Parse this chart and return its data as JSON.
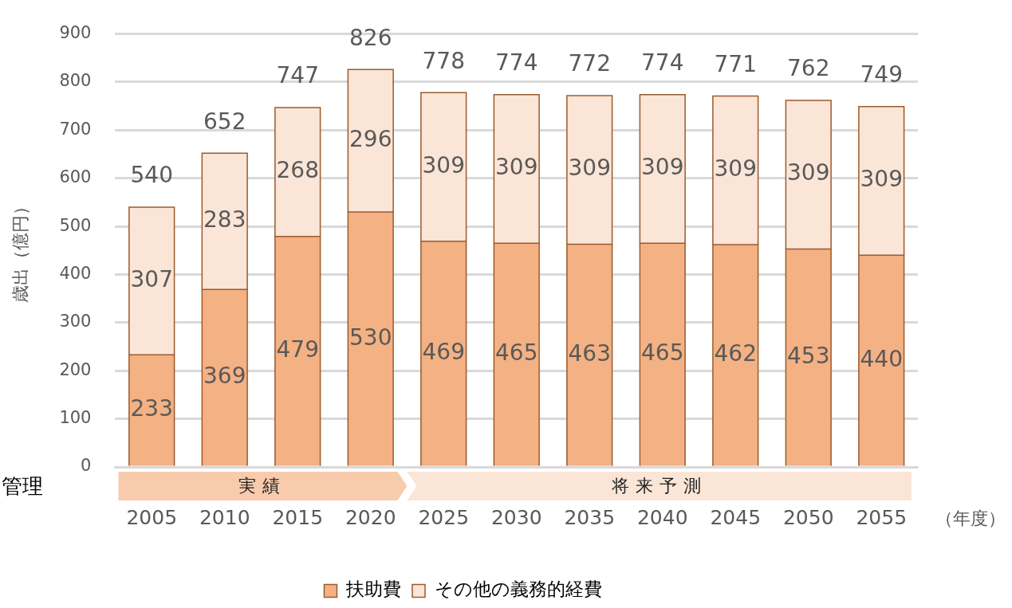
{
  "chart_data": {
    "type": "bar",
    "stacked": true,
    "ylabel": "歳出（億円）",
    "xlabel": "（年度）",
    "categories": [
      "2005",
      "2010",
      "2015",
      "2020",
      "2025",
      "2030",
      "2035",
      "2040",
      "2045",
      "2050",
      "2055"
    ],
    "series": [
      {
        "name": "扶助費",
        "color": "#f4b183",
        "values": [
          233,
          369,
          479,
          530,
          469,
          465,
          463,
          465,
          462,
          453,
          440
        ]
      },
      {
        "name": "その他の義務的経費",
        "color": "#fbe5d6",
        "values": [
          307,
          283,
          268,
          296,
          309,
          309,
          309,
          309,
          309,
          309,
          309
        ]
      }
    ],
    "totals": [
      "540",
      "652",
      "747",
      "826",
      "778",
      "774",
      "772",
      "774",
      "771",
      "762",
      "749"
    ],
    "data_labels": true,
    "ylim": [
      0,
      900
    ],
    "yticks": [
      0,
      100,
      200,
      300,
      400,
      500,
      600,
      700,
      800,
      900
    ],
    "grid": "y",
    "legend": "bottom",
    "annotations": [
      "管理",
      "実績",
      "将来予測"
    ]
  }
}
